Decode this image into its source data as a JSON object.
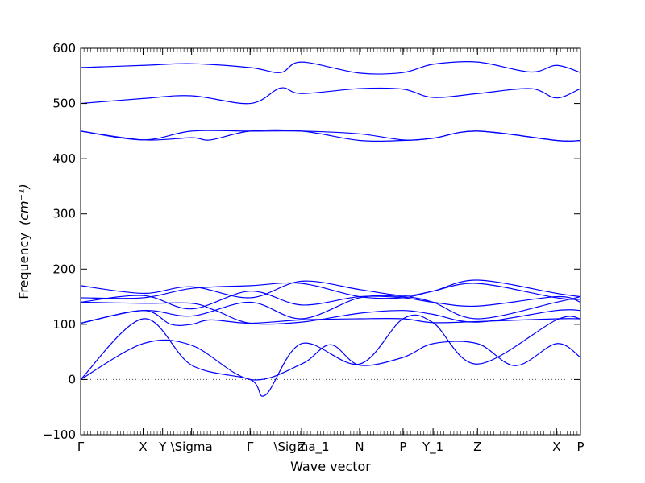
{
  "chart_data": {
    "type": "line",
    "title": "",
    "xlabel": "Wave vector",
    "ylabel": "Frequency",
    "ylabel_unit": "(cm⁻¹)",
    "ylim": [
      -100,
      600
    ],
    "yticks": [
      -100,
      0,
      100,
      200,
      300,
      400,
      500,
      600
    ],
    "xlim": [
      0,
      1
    ],
    "grid": false,
    "legend": "none",
    "series_color": "#0000ff",
    "zero_line": {
      "y": 0,
      "style": "dotted",
      "color": "#555555"
    },
    "high_symmetry_points": [
      {
        "label": "Γ",
        "x": 0.0
      },
      {
        "label": "X",
        "x": 0.125
      },
      {
        "label": "Y",
        "x": 0.164
      },
      {
        "label": "\\Sigma",
        "x": 0.222
      },
      {
        "label": "Γ",
        "x": 0.339
      },
      {
        "label": "Z",
        "x": 0.442
      },
      {
        "label": "\\Sigma_1",
        "x": 0.442
      },
      {
        "label": "N",
        "x": 0.558
      },
      {
        "label": "P",
        "x": 0.645
      },
      {
        "label": "Y_1",
        "x": 0.705
      },
      {
        "label": "Z",
        "x": 0.794
      },
      {
        "label": "X",
        "x": 0.952
      },
      {
        "label": "P",
        "x": 1.0
      }
    ],
    "series": [
      {
        "x": [
          0,
          0.125,
          0.222,
          0.339,
          0.4,
          0.442,
          0.558,
          0.645,
          0.705,
          0.794,
          0.9,
          0.952,
          1.0
        ],
        "values": [
          565,
          569,
          572,
          565,
          556,
          575,
          555,
          556,
          571,
          575,
          557,
          569,
          556
        ]
      },
      {
        "x": [
          0,
          0.125,
          0.222,
          0.339,
          0.4,
          0.442,
          0.558,
          0.645,
          0.705,
          0.794,
          0.9,
          0.952,
          1.0
        ],
        "values": [
          500,
          509,
          514,
          500,
          528,
          518,
          527,
          526,
          511,
          518,
          527,
          510,
          527
        ]
      },
      {
        "x": [
          0,
          0.125,
          0.222,
          0.339,
          0.442,
          0.558,
          0.645,
          0.705,
          0.794,
          0.952,
          1.0
        ],
        "values": [
          450,
          434,
          450,
          450,
          450,
          445,
          434,
          437,
          450,
          433,
          433
        ]
      },
      {
        "x": [
          0,
          0.125,
          0.222,
          0.26,
          0.339,
          0.442,
          0.558,
          0.645,
          0.705,
          0.794,
          0.952,
          1.0
        ],
        "values": [
          450,
          434,
          438,
          434,
          450,
          450,
          433,
          433,
          437,
          450,
          433,
          433
        ]
      },
      {
        "x": [
          0,
          0.125,
          0.222,
          0.339,
          0.442,
          0.558,
          0.645,
          0.705,
          0.794,
          0.952,
          1.0
        ],
        "values": [
          170,
          156,
          168,
          148,
          178,
          163,
          152,
          160,
          180,
          156,
          150
        ]
      },
      {
        "x": [
          0,
          0.125,
          0.222,
          0.339,
          0.442,
          0.558,
          0.645,
          0.705,
          0.794,
          0.952,
          1.0
        ],
        "values": [
          148,
          148,
          165,
          170,
          174,
          150,
          148,
          160,
          174,
          148,
          145
        ]
      },
      {
        "x": [
          0,
          0.125,
          0.222,
          0.339,
          0.442,
          0.558,
          0.645,
          0.705,
          0.794,
          0.952,
          1.0
        ],
        "values": [
          140,
          152,
          128,
          160,
          135,
          150,
          148,
          140,
          133,
          150,
          140
        ]
      },
      {
        "x": [
          0,
          0.125,
          0.222,
          0.339,
          0.442,
          0.558,
          0.645,
          0.705,
          0.794,
          0.952,
          1.0
        ],
        "values": [
          102,
          125,
          115,
          140,
          110,
          148,
          150,
          140,
          110,
          140,
          150
        ]
      },
      {
        "x": [
          0,
          0.125,
          0.222,
          0.27,
          0.339,
          0.442,
          0.558,
          0.645,
          0.705,
          0.794,
          0.952,
          1.0
        ],
        "values": [
          140,
          138,
          138,
          125,
          102,
          104,
          120,
          125,
          118,
          104,
          125,
          125
        ]
      },
      {
        "x": [
          0,
          0.125,
          0.18,
          0.222,
          0.26,
          0.339,
          0.442,
          0.558,
          0.645,
          0.705,
          0.794,
          0.952,
          1.0
        ],
        "values": [
          102,
          125,
          100,
          100,
          108,
          102,
          108,
          110,
          110,
          103,
          105,
          110,
          110
        ]
      },
      {
        "x": [
          0,
          0.125,
          0.222,
          0.339,
          0.37,
          0.442,
          0.558,
          0.645,
          0.705,
          0.794,
          0.952,
          1.0
        ],
        "values": [
          0,
          110,
          26,
          0,
          -28,
          65,
          28,
          110,
          103,
          28,
          108,
          110
        ]
      },
      {
        "x": [
          0,
          0.125,
          0.222,
          0.339,
          0.442,
          0.5,
          0.558,
          0.645,
          0.705,
          0.794,
          0.87,
          0.952,
          1.0
        ],
        "values": [
          0,
          65,
          62,
          0,
          28,
          63,
          26,
          40,
          65,
          65,
          25,
          65,
          40
        ]
      }
    ]
  }
}
